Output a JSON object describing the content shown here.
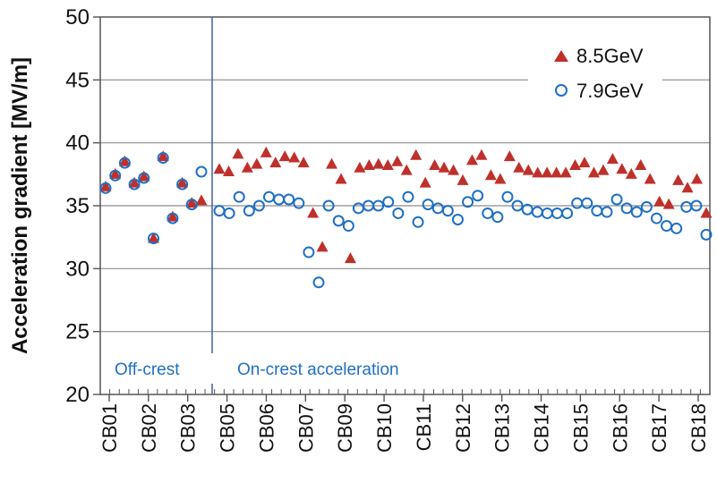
{
  "chart_data": {
    "type": "scatter",
    "ylabel": "Acceleration gradient  [MV/m]",
    "xlabel": "",
    "ylim": [
      20,
      50
    ],
    "yticks": [
      20,
      25,
      30,
      35,
      40,
      45,
      50
    ],
    "grid": "horizontal",
    "legend_position": "top-right",
    "categories": [
      "CB01",
      "CB02",
      "CB03",
      "CB05",
      "CB06",
      "CB07",
      "CB09",
      "CB10",
      "CB11",
      "CB12",
      "CB13",
      "CB14",
      "CB15",
      "CB16",
      "CB17",
      "CB18"
    ],
    "annotations": {
      "left": "Off-crest",
      "right": "On-crest acceleration"
    },
    "series": [
      {
        "name": "8.5GeV",
        "marker": "triangle",
        "color": "#c0302b",
        "values": [
          36.5,
          37.5,
          38.5,
          36.8,
          37.3,
          32.4,
          38.9,
          34.1,
          36.8,
          35.2,
          35.4,
          37.9,
          37.7,
          39.1,
          38.0,
          38.3,
          39.2,
          38.4,
          38.9,
          38.8,
          38.4,
          34.4,
          31.7,
          38.3,
          37.1,
          30.8,
          38.0,
          38.2,
          38.3,
          38.2,
          38.5,
          37.8,
          39.0,
          36.8,
          38.2,
          38.0,
          37.8,
          37.0,
          38.6,
          39.0,
          37.4,
          37.1,
          38.9,
          38.0,
          37.8,
          37.6,
          37.6,
          37.6,
          37.6,
          38.2,
          38.4,
          37.6,
          37.8,
          38.7,
          37.9,
          37.5,
          38.2,
          37.1,
          35.3,
          35.1,
          37.0,
          36.4,
          37.1,
          34.4
        ]
      },
      {
        "name": "7.9GeV",
        "marker": "circle",
        "color": "#1f6fc5",
        "values": [
          36.4,
          37.4,
          38.4,
          36.7,
          37.2,
          32.4,
          38.8,
          34.0,
          36.7,
          35.1,
          37.7,
          34.6,
          34.4,
          35.7,
          34.6,
          35.0,
          35.7,
          35.5,
          35.5,
          35.2,
          31.3,
          28.9,
          35.0,
          33.8,
          33.4,
          34.8,
          35.0,
          35.0,
          35.3,
          34.4,
          35.7,
          33.7,
          35.1,
          34.8,
          34.6,
          33.9,
          35.3,
          35.8,
          34.4,
          34.1,
          35.7,
          35.0,
          34.7,
          34.5,
          34.4,
          34.4,
          34.4,
          35.2,
          35.2,
          34.6,
          34.5,
          35.5,
          34.8,
          34.5,
          34.9,
          34.0,
          33.4,
          33.2,
          34.9,
          35.0,
          32.7
        ]
      }
    ]
  }
}
